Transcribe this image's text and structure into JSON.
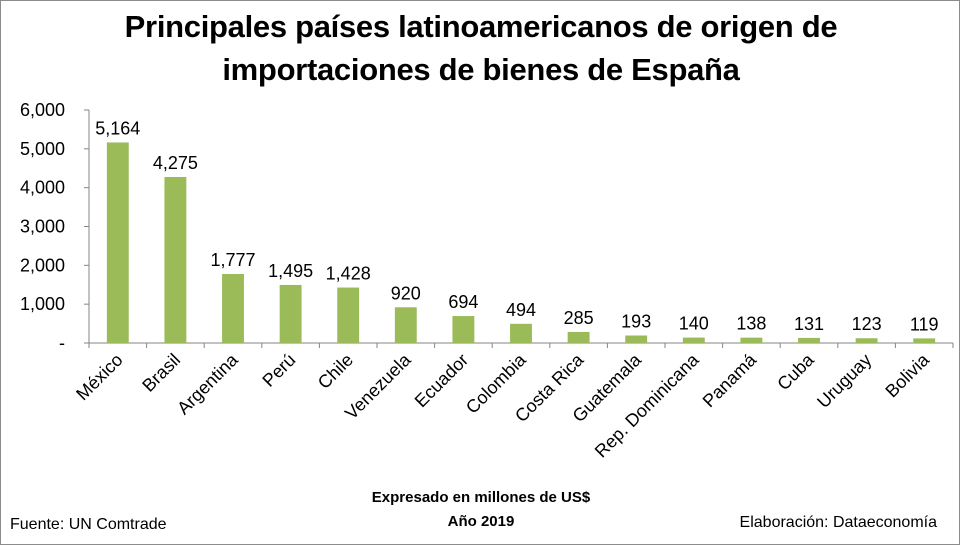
{
  "chart_data": {
    "type": "bar",
    "title_lines": [
      "Principales países latinoamericanos de origen de",
      "importaciones de bienes de España"
    ],
    "subtitle_lines": [
      "Expresado en millones de US$",
      "Año 2019"
    ],
    "source": "Fuente: UN Comtrade",
    "credit": "Elaboración: Dataeconomía",
    "categories": [
      "México",
      "Brasil",
      "Argentina",
      "Perú",
      "Chile",
      "Venezuela",
      "Ecuador",
      "Colombia",
      "Costa Rica",
      "Guatemala",
      "Rep. Dominicana",
      "Panamá",
      "Cuba",
      "Uruguay",
      "Bolivia"
    ],
    "values": [
      5164,
      4275,
      1777,
      1495,
      1428,
      920,
      694,
      494,
      285,
      193,
      140,
      138,
      131,
      123,
      119
    ],
    "value_labels": [
      "5,164",
      "4,275",
      "1,777",
      "1,495",
      "1,428",
      "920",
      "694",
      "494",
      "285",
      "193",
      "140",
      "138",
      "131",
      "123",
      "119"
    ],
    "y_ticks": [
      0,
      1000,
      2000,
      3000,
      4000,
      5000,
      6000
    ],
    "y_tick_labels": [
      "-",
      "1,000",
      "2,000",
      "3,000",
      "4,000",
      "5,000",
      "6,000"
    ],
    "ylim": [
      0,
      6000
    ],
    "grid": false,
    "legend": "none",
    "bar_color": "#9bbb59",
    "axis_color": "#868686"
  }
}
